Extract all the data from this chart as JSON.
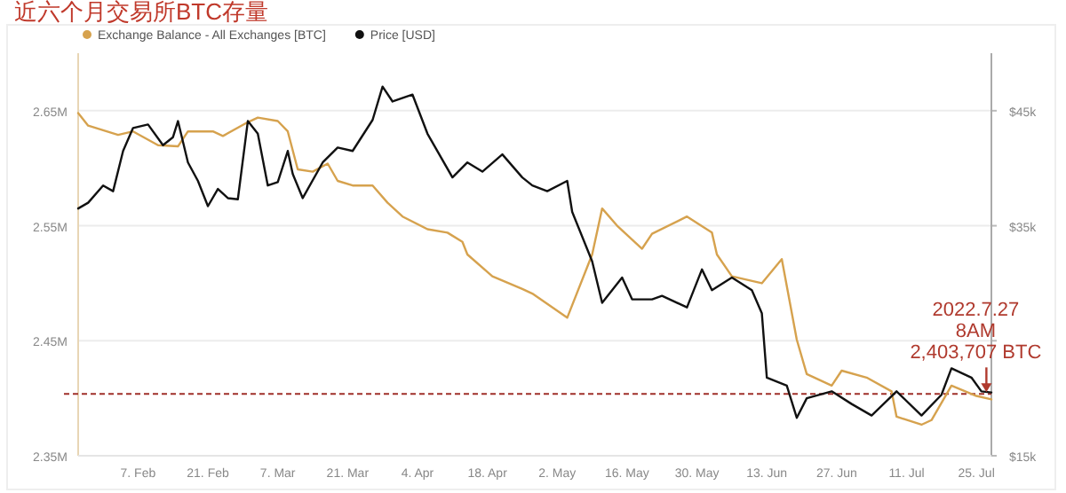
{
  "chart_data": {
    "type": "line",
    "title": "近六个月交易所BTC存量",
    "legend": "top left",
    "grid": "y",
    "xlim": [
      "2022-01-26",
      "2022-07-28"
    ],
    "xticks": [
      {
        "value": "2022-02-07",
        "label": "7. Feb"
      },
      {
        "value": "2022-02-21",
        "label": "21. Feb"
      },
      {
        "value": "2022-03-07",
        "label": "7. Mar"
      },
      {
        "value": "2022-03-21",
        "label": "21. Mar"
      },
      {
        "value": "2022-04-04",
        "label": "4. Apr"
      },
      {
        "value": "2022-04-18",
        "label": "18. Apr"
      },
      {
        "value": "2022-05-02",
        "label": "2. May"
      },
      {
        "value": "2022-05-16",
        "label": "16. May"
      },
      {
        "value": "2022-05-30",
        "label": "30. May"
      },
      {
        "value": "2022-06-13",
        "label": "13. Jun"
      },
      {
        "value": "2022-06-27",
        "label": "27. Jun"
      },
      {
        "value": "2022-07-11",
        "label": "11. Jul"
      },
      {
        "value": "2022-07-25",
        "label": "25. Jul"
      }
    ],
    "ylim": [
      2.35,
      2.7
    ],
    "yticks": [
      {
        "value": 2.35,
        "label": "2.35M"
      },
      {
        "value": 2.45,
        "label": "2.45M"
      },
      {
        "value": 2.55,
        "label": "2.55M"
      },
      {
        "value": 2.65,
        "label": "2.65M"
      }
    ],
    "y2lim": [
      15,
      50
    ],
    "y2ticks": [
      {
        "value": 15,
        "label": "$15k"
      },
      {
        "value": 25,
        "label": null
      },
      {
        "value": 35,
        "label": "$35k"
      },
      {
        "value": 45,
        "label": "$45k"
      }
    ],
    "ref_lines": [
      {
        "axis": "y",
        "value": 2.4037,
        "color": "#a0302a",
        "line_style": "dashed"
      }
    ],
    "annotations": [
      {
        "text": "2022.7.27\n8AM\n2,403,707 BTC",
        "x": "2022-07-27",
        "y": 2.4037
      }
    ],
    "series": [
      {
        "name": "Exchange Balance - All Exchanges [BTC]",
        "color": "#d6a24e",
        "x": [
          "2022-01-26",
          "2022-01-28",
          "2022-02-03",
          "2022-02-06",
          "2022-02-11",
          "2022-02-15",
          "2022-02-17",
          "2022-02-22",
          "2022-02-24",
          "2022-03-01",
          "2022-03-03",
          "2022-03-07",
          "2022-03-09",
          "2022-03-11",
          "2022-03-14",
          "2022-03-17",
          "2022-03-19",
          "2022-03-22",
          "2022-03-26",
          "2022-03-29",
          "2022-04-01",
          "2022-04-06",
          "2022-04-10",
          "2022-04-13",
          "2022-04-14",
          "2022-04-19",
          "2022-04-25",
          "2022-04-27",
          "2022-05-04",
          "2022-05-09",
          "2022-05-11",
          "2022-05-14",
          "2022-05-19",
          "2022-05-21",
          "2022-05-28",
          "2022-06-02",
          "2022-06-03",
          "2022-06-06",
          "2022-06-12",
          "2022-06-16",
          "2022-06-19",
          "2022-06-21",
          "2022-06-26",
          "2022-06-28",
          "2022-07-03",
          "2022-07-08",
          "2022-07-09",
          "2022-07-14",
          "2022-07-16",
          "2022-07-20",
          "2022-07-25",
          "2022-07-28"
        ],
        "values": [
          2.648,
          2.637,
          2.629,
          2.632,
          2.62,
          2.619,
          2.632,
          2.632,
          2.628,
          2.64,
          2.644,
          2.641,
          2.632,
          2.599,
          2.597,
          2.604,
          2.589,
          2.585,
          2.585,
          2.57,
          2.558,
          2.547,
          2.544,
          2.536,
          2.525,
          2.506,
          2.495,
          2.491,
          2.47,
          2.525,
          2.565,
          2.55,
          2.53,
          2.543,
          2.558,
          2.544,
          2.525,
          2.506,
          2.5,
          2.521,
          2.451,
          2.421,
          2.411,
          2.424,
          2.418,
          2.406,
          2.384,
          2.377,
          2.381,
          2.411,
          2.402,
          2.399
        ]
      },
      {
        "name": "Price [USD]",
        "color": "#111111",
        "axis": "y2",
        "x": [
          "2022-01-26",
          "2022-01-28",
          "2022-01-31",
          "2022-02-02",
          "2022-02-04",
          "2022-02-06",
          "2022-02-09",
          "2022-02-12",
          "2022-02-14",
          "2022-02-15",
          "2022-02-17",
          "2022-02-19",
          "2022-02-21",
          "2022-02-23",
          "2022-02-25",
          "2022-02-27",
          "2022-03-01",
          "2022-03-03",
          "2022-03-05",
          "2022-03-07",
          "2022-03-09",
          "2022-03-10",
          "2022-03-12",
          "2022-03-16",
          "2022-03-19",
          "2022-03-22",
          "2022-03-26",
          "2022-03-28",
          "2022-03-30",
          "2022-04-03",
          "2022-04-06",
          "2022-04-11",
          "2022-04-14",
          "2022-04-17",
          "2022-04-21",
          "2022-04-25",
          "2022-04-27",
          "2022-04-30",
          "2022-05-04",
          "2022-05-05",
          "2022-05-09",
          "2022-05-11",
          "2022-05-15",
          "2022-05-17",
          "2022-05-21",
          "2022-05-23",
          "2022-05-28",
          "2022-05-31",
          "2022-06-02",
          "2022-06-06",
          "2022-06-10",
          "2022-06-12",
          "2022-06-13",
          "2022-06-17",
          "2022-06-19",
          "2022-06-21",
          "2022-06-26",
          "2022-06-30",
          "2022-07-04",
          "2022-07-09",
          "2022-07-14",
          "2022-07-18",
          "2022-07-20",
          "2022-07-24",
          "2022-07-26",
          "2022-07-28"
        ],
        "values": [
          36.5,
          37,
          38.5,
          38,
          41.5,
          43.5,
          43.8,
          42,
          42.7,
          44.1,
          40.5,
          38.9,
          36.7,
          38.2,
          37.4,
          37.3,
          44.1,
          43,
          38.5,
          38.8,
          41.5,
          39.5,
          37.4,
          40.5,
          41.8,
          41.5,
          44.2,
          47.1,
          45.8,
          46.4,
          43,
          39.2,
          40.5,
          39.7,
          41.2,
          39.2,
          38.5,
          38,
          38.9,
          36.2,
          31.9,
          28.3,
          30.5,
          28.6,
          28.6,
          28.9,
          27.9,
          31.2,
          29.4,
          30.5,
          29.4,
          27.4,
          21.8,
          21.1,
          18.3,
          20,
          20.6,
          19.5,
          18.5,
          20.6,
          18.5,
          20.3,
          22.6,
          21.8,
          20.6,
          20.5
        ]
      }
    ]
  }
}
